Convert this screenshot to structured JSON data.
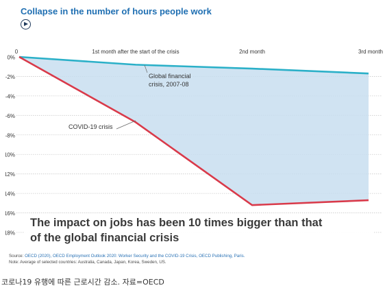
{
  "colors": {
    "title": "#1f6fb2",
    "gfc_line": "#2bb0c8",
    "covid_line": "#d93a4a",
    "fill": "#c8def0",
    "grid": "#c9c9c9"
  },
  "callout": {
    "line1": "The impact on jobs has been 10 times bigger than that",
    "line2": "of the global financial crisis"
  },
  "source": {
    "label": "Source:",
    "text": "OECD (2020), OECD Employment Outlook 2020: Worker Security and the COVID-19 Crisis, OECD Publishing, Paris.",
    "note": "Note: Average of selected countries: Australia, Canada, Japan, Korea, Sweden, US."
  },
  "caption": "코로나19 유행에 따른 근로시간 감소. 자료=OECD",
  "chart_data": {
    "type": "line",
    "title": "Collapse in the number of hours people work",
    "categories": [
      "0",
      "1st month after the start of the crisis",
      "2nd month",
      "3rd month"
    ],
    "x": [
      0,
      1,
      2,
      3
    ],
    "y_tick_labels": [
      "0%",
      "-2%",
      "-4%",
      "-6%",
      "-8%",
      "-10%",
      "-12%",
      "-14%",
      "-16%",
      "-18%"
    ],
    "ylim": [
      -18,
      0
    ],
    "grid": "horizontal",
    "series": [
      {
        "name": "Global financial crisis, 2007-08",
        "label_lines": [
          "Global financial",
          "crisis, 2007-08"
        ],
        "x": [
          0,
          1,
          2,
          3
        ],
        "values": [
          0,
          -0.8,
          -1.2,
          -1.7
        ]
      },
      {
        "name": "COVID-19 crisis",
        "label_lines": [
          "COVID-19 crisis"
        ],
        "x": [
          0,
          1,
          2,
          3
        ],
        "values": [
          0,
          -6.7,
          -15.2,
          -14.7
        ]
      }
    ],
    "shaded_area_between_series": true
  }
}
